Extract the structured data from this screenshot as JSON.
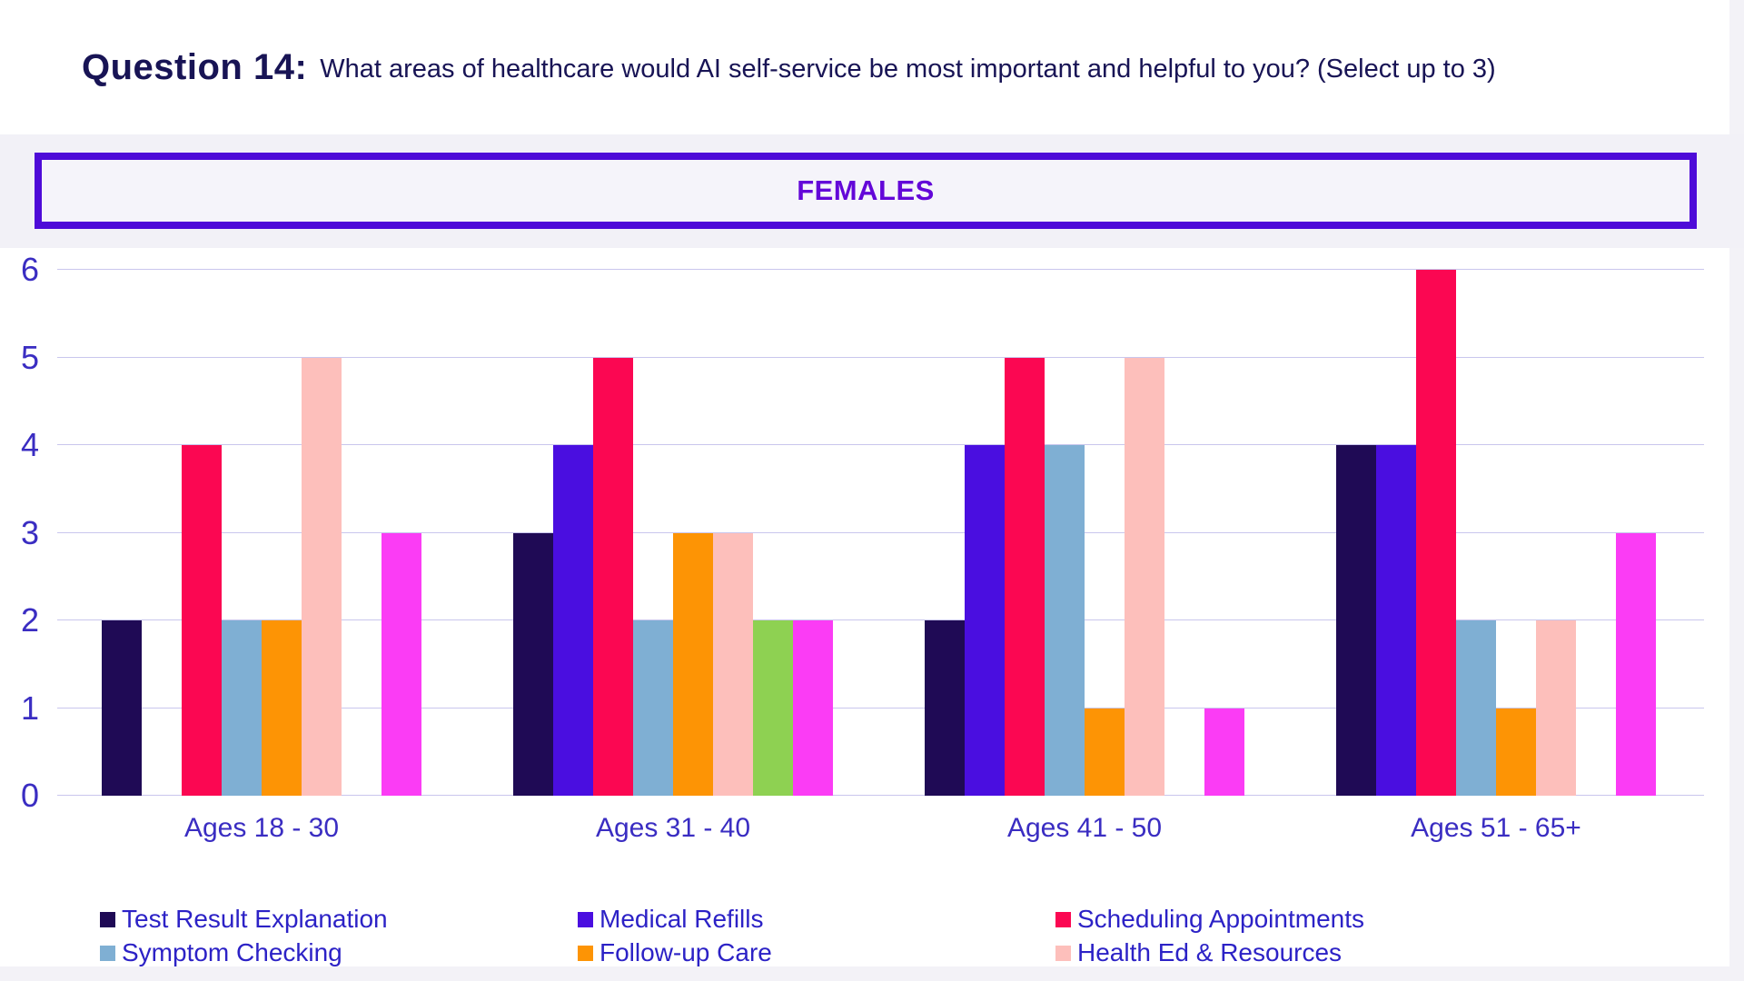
{
  "title": {
    "prefix": "Question 14:",
    "text": "What areas of healthcare would AI self-service be most important and helpful to you? (Select up to 3)"
  },
  "banner": {
    "label": "FEMALES",
    "border_color": "#4e0bd8",
    "text_color": "#6307d8"
  },
  "chart_data": {
    "type": "bar",
    "title": "FEMALES",
    "categories": [
      "Ages 18 - 30",
      "Ages 31 - 40",
      "Ages 41 - 50",
      "Ages 51 - 65+"
    ],
    "series": [
      {
        "name": "Test Result Explanation",
        "color": "#1f0a55",
        "values": [
          2,
          3,
          2,
          4
        ],
        "in_legend": true
      },
      {
        "name": "Medical Refills",
        "color": "#4a0ee0",
        "values": [
          0,
          4,
          4,
          4
        ],
        "in_legend": true
      },
      {
        "name": "Scheduling Appointments",
        "color": "#fb0752",
        "values": [
          4,
          5,
          5,
          6
        ],
        "in_legend": true
      },
      {
        "name": "Symptom Checking",
        "color": "#7fafd3",
        "values": [
          2,
          2,
          4,
          2
        ],
        "in_legend": true
      },
      {
        "name": "Follow-up Care",
        "color": "#fd9405",
        "values": [
          2,
          3,
          1,
          1
        ],
        "in_legend": true
      },
      {
        "name": "Health Ed & Resources",
        "color": "#fdbfbb",
        "values": [
          5,
          3,
          5,
          2
        ],
        "in_legend": true
      },
      {
        "name": "",
        "color": "#8ed152",
        "values": [
          0,
          2,
          0,
          0
        ],
        "in_legend": false
      },
      {
        "name": "",
        "color": "#fb3cf5",
        "values": [
          3,
          2,
          1,
          3
        ],
        "in_legend": false
      }
    ],
    "ylim": [
      0,
      6
    ],
    "yticks": [
      0,
      1,
      2,
      3,
      4,
      5,
      6
    ],
    "xlabel": "",
    "ylabel": "",
    "grid": "horizontal",
    "legend_position": "bottom",
    "legend_rows": [
      [
        "Test Result Explanation",
        "Medical Refills",
        "Scheduling Appointments"
      ],
      [
        "Symptom Checking",
        "Follow-up Care",
        "Health Ed & Resources"
      ]
    ]
  },
  "colors": {
    "page_background": "#f3f2f7",
    "panel_background": "#ffffff",
    "gridline": "#c9c6ed",
    "axis_text": "#3a2dc2",
    "legend_text": "#2c22c6",
    "title_text": "#181455"
  }
}
